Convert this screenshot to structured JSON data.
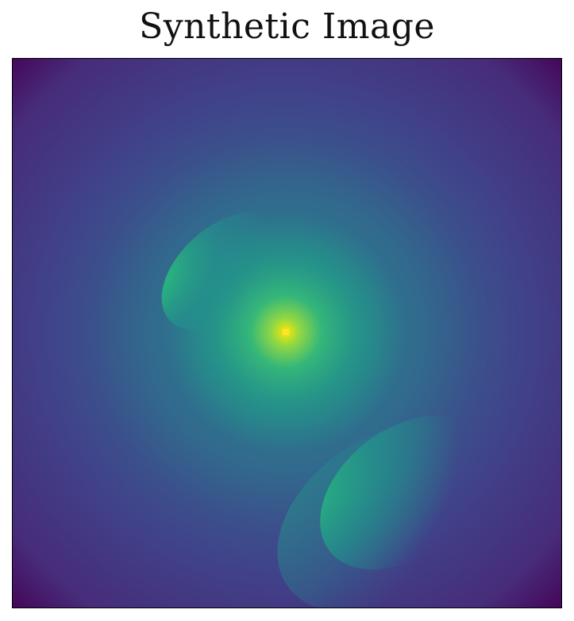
{
  "title": "Synthetic Image",
  "colormap": {
    "name": "viridis",
    "low": "#440154",
    "mid_low": "#3b528b",
    "mid": "#21918c",
    "mid_high": "#5ec962",
    "high": "#fde725"
  }
}
